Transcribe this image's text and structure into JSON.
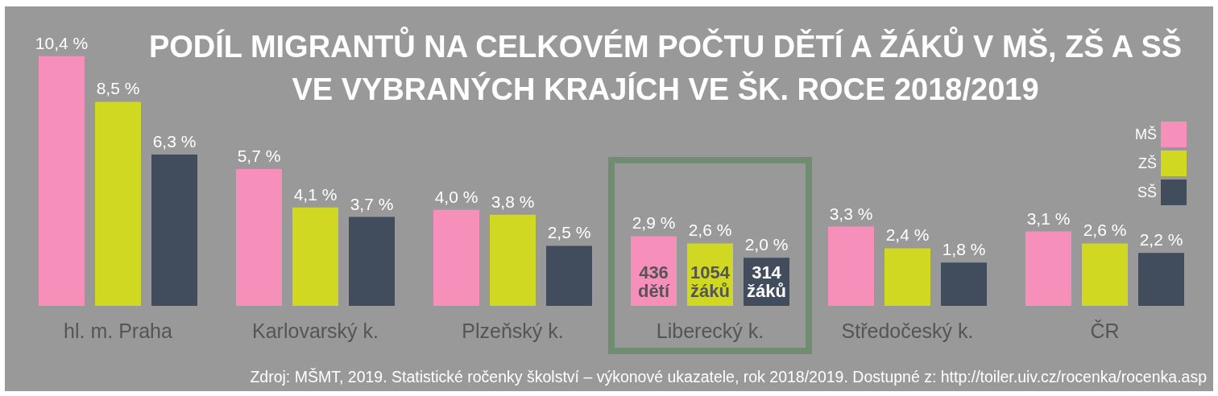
{
  "chart_data": {
    "type": "bar",
    "title": "PODÍL MIGRANTŮ NA CELKOVÉM POČTU DĚTÍ A ŽÁKŮ V MŠ, ZŠ A SŠ\nVE VYBRANÝCH KRAJÍCH VE ŠK. ROCE 2018/2019",
    "categories": [
      "hl. m. Praha",
      "Karlovarský k.",
      "Plzeňský k.",
      "Liberecký k.",
      "Středočeský k.",
      "ČR"
    ],
    "series": [
      {
        "name": "MŠ",
        "color": "#f78fbb",
        "values": [
          10.4,
          5.7,
          4.0,
          2.9,
          3.3,
          3.1
        ],
        "value_labels": [
          "10,4 %",
          "5,7 %",
          "4,0 %",
          "2,9 %",
          "3,3 %",
          "3,1 %"
        ]
      },
      {
        "name": "ZŠ",
        "color": "#d0d821",
        "values": [
          8.5,
          4.1,
          3.8,
          2.6,
          2.4,
          2.6
        ],
        "value_labels": [
          "8,5 %",
          "4,1 %",
          "3,8 %",
          "2,6 %",
          "2,4 %",
          "2,6 %"
        ]
      },
      {
        "name": "SŠ",
        "color": "#414c5c",
        "values": [
          6.3,
          3.7,
          2.5,
          2.0,
          1.8,
          2.2
        ],
        "value_labels": [
          "6,3 %",
          "3,7 %",
          "2,5 %",
          "2,0 %",
          "1,8 %",
          "2,2 %"
        ]
      }
    ],
    "annotations": [
      "436\ndětí",
      "1054\nžáků",
      "314\nžáků",
      "Zdroj: MŠMT, 2019. Statistické ročenky školství – výkonové ukazatele, rok 2018/2019. Dostupné z: http://toiler.uiv.cz/rocenka/rocenka.asp"
    ],
    "legend": "top right",
    "grid": false
  }
}
